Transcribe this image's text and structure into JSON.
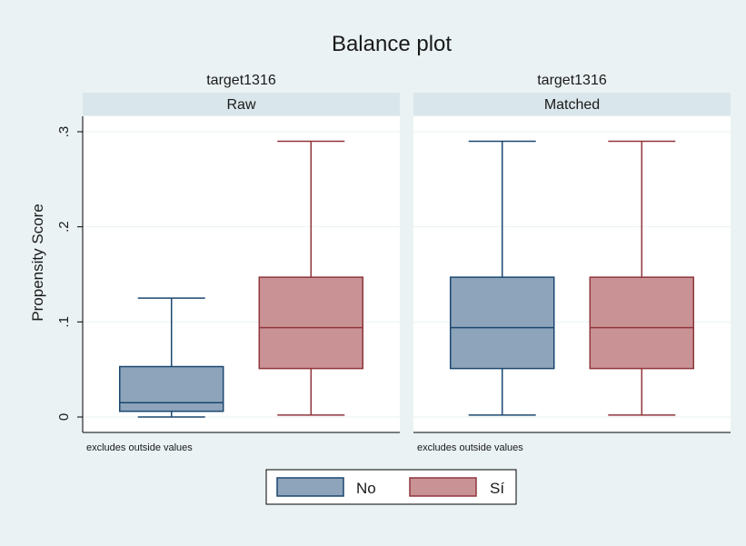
{
  "chart_data": {
    "type": "box",
    "title": "Balance plot",
    "ylabel": "Propensity Score",
    "ylim": [
      0,
      0.3
    ],
    "y_ticks": [
      0,
      0.1,
      0.2,
      0.3
    ],
    "y_tick_labels": [
      "0",
      ".1",
      ".2",
      ".3"
    ],
    "grid": true,
    "legend_position": "bottom",
    "legend": [
      {
        "name": "No",
        "color": "#8ea4ba"
      },
      {
        "name": "Sí",
        "color": "#c99396"
      }
    ],
    "panels": [
      {
        "group": "target1316",
        "label": "Raw",
        "note": "excludes outside values",
        "boxes": [
          {
            "series": "No",
            "whisker_low": 0.0,
            "q1": 0.006,
            "median": 0.015,
            "q3": 0.053,
            "whisker_high": 0.125
          },
          {
            "series": "Sí",
            "whisker_low": 0.002,
            "q1": 0.051,
            "median": 0.094,
            "q3": 0.147,
            "whisker_high": 0.29
          }
        ]
      },
      {
        "group": "target1316",
        "label": "Matched",
        "note": "excludes outside values",
        "boxes": [
          {
            "series": "No",
            "whisker_low": 0.002,
            "q1": 0.051,
            "median": 0.094,
            "q3": 0.147,
            "whisker_high": 0.29
          },
          {
            "series": "Sí",
            "whisker_low": 0.002,
            "q1": 0.051,
            "median": 0.094,
            "q3": 0.147,
            "whisker_high": 0.29
          }
        ]
      }
    ]
  },
  "colors": {
    "background": "#eaf2f3",
    "plot_bg": "#ffffff",
    "strip_bg": "#d9e6eb",
    "grid": "#eaf2f3",
    "no_fill": "#8ea4ba",
    "no_stroke": "#1a476f",
    "si_fill": "#c99396",
    "si_stroke": "#90353b"
  }
}
